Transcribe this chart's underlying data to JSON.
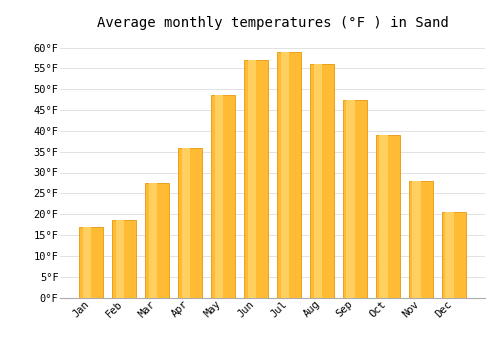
{
  "title": "Average monthly temperatures (°F ) in Sand",
  "months": [
    "Jan",
    "Feb",
    "Mar",
    "Apr",
    "May",
    "Jun",
    "Jul",
    "Aug",
    "Sep",
    "Oct",
    "Nov",
    "Dec"
  ],
  "values": [
    17,
    18.5,
    27.5,
    36,
    48.5,
    57,
    59,
    56,
    47.5,
    39,
    28,
    20.5
  ],
  "bar_color_face": "#FFBB33",
  "bar_color_edge": "#E8960A",
  "bar_color_light": "#FFD060",
  "ylim": [
    0,
    63
  ],
  "yticks": [
    0,
    5,
    10,
    15,
    20,
    25,
    30,
    35,
    40,
    45,
    50,
    55,
    60
  ],
  "bg_color": "#FFFFFF",
  "grid_color": "#DDDDDD",
  "title_fontsize": 10,
  "tick_fontsize": 7.5,
  "font_family": "monospace"
}
